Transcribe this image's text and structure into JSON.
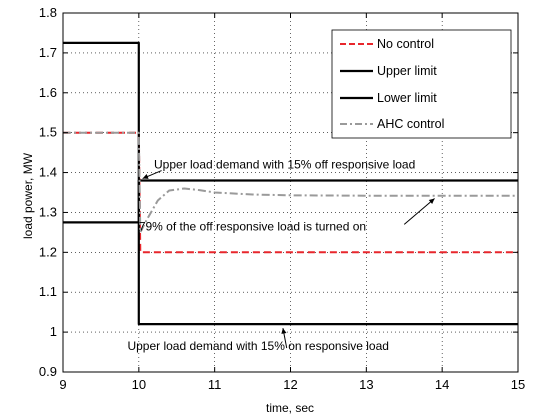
{
  "chart_data": {
    "type": "line",
    "title": "",
    "xlabel": "time, sec",
    "ylabel": "load power, MW",
    "xlim": [
      9,
      15
    ],
    "ylim": [
      0.9,
      1.8
    ],
    "x_ticks": [
      "9",
      "10",
      "11",
      "12",
      "13",
      "14",
      "15"
    ],
    "y_ticks": [
      "0.9",
      "1",
      "1.1",
      "1.2",
      "1.3",
      "1.4",
      "1.5",
      "1.6",
      "1.7",
      "1.8"
    ],
    "grid": true,
    "legend_position": "top-right",
    "legend": [
      "No control",
      "Upper limit",
      "Lower limit",
      "AHC control"
    ],
    "series": [
      {
        "name": "No control",
        "style": "dashed",
        "color": "#e8262c",
        "points": [
          [
            9,
            1.5
          ],
          [
            10,
            1.5
          ],
          [
            10.02,
            1.2
          ],
          [
            15,
            1.2
          ]
        ]
      },
      {
        "name": "Upper limit",
        "style": "solid",
        "color": "#000000",
        "points": [
          [
            9,
            1.725
          ],
          [
            10,
            1.725
          ],
          [
            10,
            1.02
          ],
          [
            15,
            1.02
          ]
        ]
      },
      {
        "name": "Lower limit",
        "style": "solid",
        "color": "#000000",
        "points": [
          [
            9,
            1.275
          ],
          [
            10,
            1.275
          ],
          [
            10,
            1.38
          ],
          [
            15,
            1.38
          ]
        ]
      },
      {
        "name": "AHC control",
        "style": "dash-dot",
        "color": "#9a9a9a",
        "points": [
          [
            9,
            1.5
          ],
          [
            10,
            1.5
          ],
          [
            10.02,
            1.25
          ],
          [
            10.1,
            1.28
          ],
          [
            10.25,
            1.33
          ],
          [
            10.4,
            1.355
          ],
          [
            10.6,
            1.36
          ],
          [
            10.8,
            1.356
          ],
          [
            11.0,
            1.35
          ],
          [
            11.5,
            1.345
          ],
          [
            12,
            1.343
          ],
          [
            13,
            1.342
          ],
          [
            14,
            1.342
          ],
          [
            15,
            1.342
          ]
        ]
      }
    ],
    "annotations": [
      {
        "text": "Upper load demand with 15% off responsive load",
        "x": 10.2,
        "y": 1.41
      },
      {
        "text": "79% of the off responsive load is turned on",
        "x": 10.0,
        "y": 1.255
      },
      {
        "text": "Upper load demand with 15% on responsive load",
        "x": 9.85,
        "y": 0.955
      }
    ]
  }
}
